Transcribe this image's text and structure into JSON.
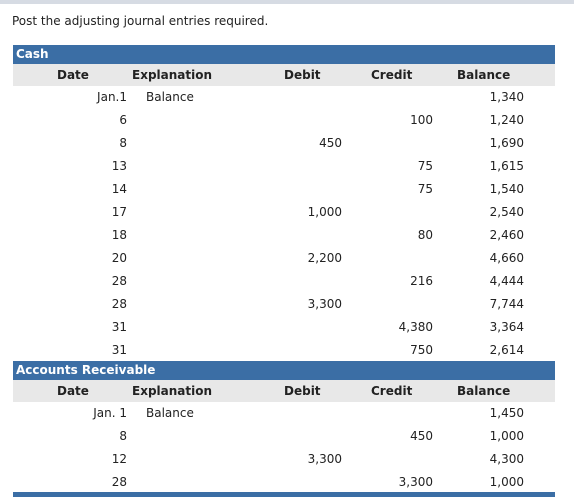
{
  "instructions": "Post the adjusting journal entries required.",
  "ledgers": [
    {
      "title": "Cash",
      "columns": [
        "Date",
        "Explanation",
        "Debit",
        "Credit",
        "Balance"
      ],
      "rows": [
        {
          "date": "Jan.1",
          "explanation": "Balance",
          "debit": "",
          "credit": "",
          "balance": "1,340"
        },
        {
          "date": "6",
          "explanation": "",
          "debit": "",
          "credit": "100",
          "balance": "1,240"
        },
        {
          "date": "8",
          "explanation": "",
          "debit": "450",
          "credit": "",
          "balance": "1,690"
        },
        {
          "date": "13",
          "explanation": "",
          "debit": "",
          "credit": "75",
          "balance": "1,615"
        },
        {
          "date": "14",
          "explanation": "",
          "debit": "",
          "credit": "75",
          "balance": "1,540"
        },
        {
          "date": "17",
          "explanation": "",
          "debit": "1,000",
          "credit": "",
          "balance": "2,540"
        },
        {
          "date": "18",
          "explanation": "",
          "debit": "",
          "credit": "80",
          "balance": "2,460"
        },
        {
          "date": "20",
          "explanation": "",
          "debit": "2,200",
          "credit": "",
          "balance": "4,660"
        },
        {
          "date": "28",
          "explanation": "",
          "debit": "",
          "credit": "216",
          "balance": "4,444"
        },
        {
          "date": "28",
          "explanation": "",
          "debit": "3,300",
          "credit": "",
          "balance": "7,744"
        },
        {
          "date": "31",
          "explanation": "",
          "debit": "",
          "credit": "4,380",
          "balance": "3,364"
        },
        {
          "date": "31",
          "explanation": "",
          "debit": "",
          "credit": "750",
          "balance": "2,614"
        }
      ]
    },
    {
      "title": "Accounts Receivable",
      "columns": [
        "Date",
        "Explanation",
        "Debit",
        "Credit",
        "Balance"
      ],
      "rows": [
        {
          "date": "Jan. 1",
          "explanation": "Balance",
          "debit": "",
          "credit": "",
          "balance": "1,450"
        },
        {
          "date": "8",
          "explanation": "",
          "debit": "",
          "credit": "450",
          "balance": "1,000"
        },
        {
          "date": "12",
          "explanation": "",
          "debit": "3,300",
          "credit": "",
          "balance": "4,300"
        },
        {
          "date": "28",
          "explanation": "",
          "debit": "",
          "credit": "3,300",
          "balance": "1,000"
        }
      ]
    }
  ]
}
